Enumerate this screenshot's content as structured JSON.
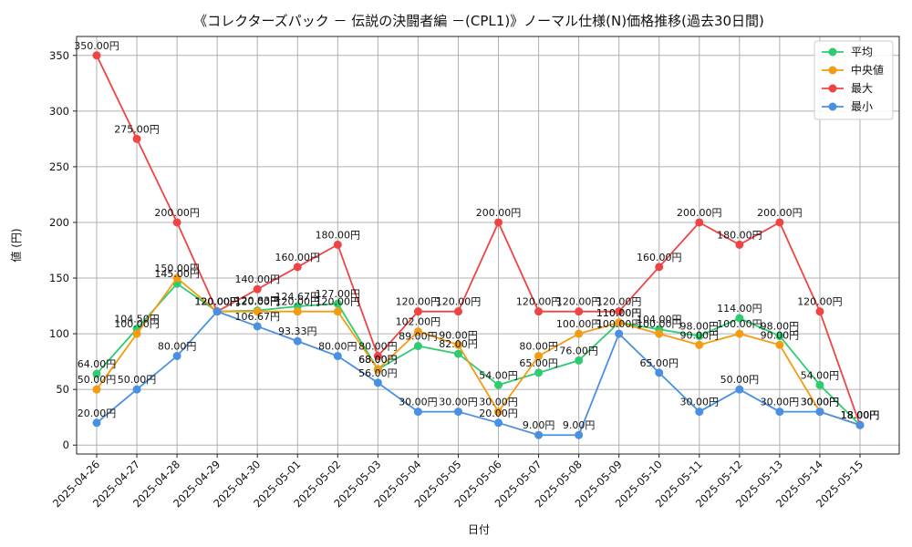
{
  "chart_data": {
    "type": "line",
    "title": "《コレクターズパック － 伝説の決闘者編 －(CPL1)》ノーマル仕様(N)価格推移(過去30日間)",
    "xlabel": "日付",
    "ylabel": "値 (円)",
    "ylim": [
      -8,
      367
    ],
    "yticks": [
      0,
      50,
      100,
      150,
      200,
      250,
      300,
      350
    ],
    "grid": true,
    "legend_position": "top-right",
    "value_suffix": "円",
    "categories": [
      "2025-04-26",
      "2025-04-27",
      "2025-04-28",
      "2025-04-29",
      "2025-04-30",
      "2025-05-01",
      "2025-05-02",
      "2025-05-03",
      "2025-05-04",
      "2025-05-05",
      "2025-05-06",
      "2025-05-07",
      "2025-05-08",
      "2025-05-09",
      "2025-05-10",
      "2025-05-11",
      "2025-05-12",
      "2025-05-13",
      "2025-05-14",
      "2025-05-15"
    ],
    "series": [
      {
        "name": "平均",
        "color": "#2ecc71",
        "values": [
          64,
          104.5,
          145,
          120,
          120.83,
          124.67,
          127,
          68,
          89,
          82,
          54,
          65,
          76,
          110,
          104,
          98,
          114,
          98,
          54,
          18
        ]
      },
      {
        "name": "中央値",
        "color": "#f39c12",
        "values": [
          50,
          100,
          150,
          120,
          120,
          120,
          120,
          68,
          102,
          90,
          30,
          80,
          100,
          110,
          100,
          90,
          100,
          90,
          30,
          18
        ]
      },
      {
        "name": "最大",
        "color": "#ef4444",
        "values": [
          350,
          275,
          200,
          120,
          140,
          160,
          180,
          80,
          120,
          120,
          200,
          120,
          120,
          120,
          160,
          200,
          180,
          200,
          120,
          18
        ]
      },
      {
        "name": "最小",
        "color": "#4a90e2",
        "values": [
          20,
          50,
          80,
          120,
          106.67,
          93.33,
          80,
          56,
          30,
          30,
          20,
          9,
          9,
          100,
          65,
          30,
          50,
          30,
          30,
          18
        ]
      }
    ]
  }
}
